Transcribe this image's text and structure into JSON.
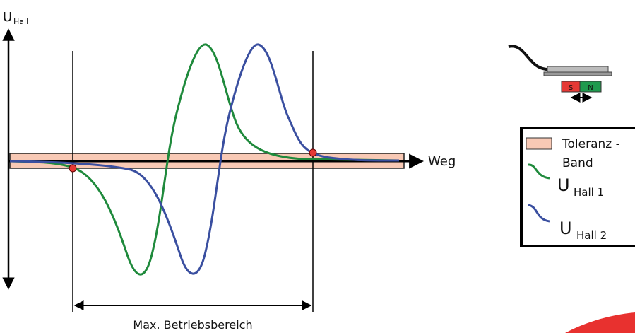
{
  "axis": {
    "y_label": "U",
    "y_label_sub": "Hall",
    "x_label": "Weg"
  },
  "range_label": "Max. Betriebsbereich",
  "sensor": {
    "south": "S",
    "north": "N"
  },
  "legend": {
    "band_line1": "Toleranz -",
    "band_line2": "Band",
    "series": [
      {
        "symbol": "U",
        "sub": "Hall 1"
      },
      {
        "symbol": "U",
        "sub": "Hall 2"
      }
    ]
  }
}
